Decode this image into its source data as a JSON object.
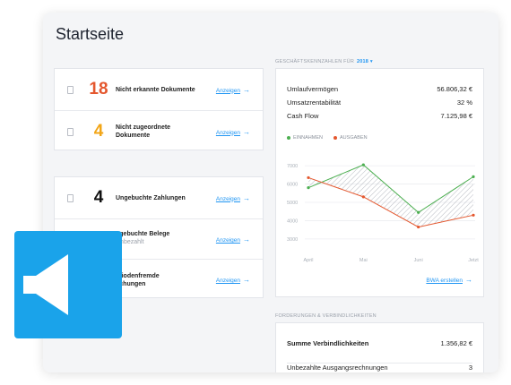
{
  "page": {
    "title": "Startseite"
  },
  "documents": [
    {
      "count": "18",
      "color": "#e4572e",
      "label": "Nicht erkannte Dokumente",
      "link": "Anzeigen"
    },
    {
      "count": "4",
      "color": "#f2a516",
      "label": "Nicht zugeordnete Dokumente",
      "link": "Anzeigen"
    }
  ],
  "bookings": [
    {
      "count": "4",
      "label": "Ungebuchte Zahlungen",
      "sub": "",
      "link": "Anzeigen"
    },
    {
      "count": "",
      "label": "ngebuchte Belege",
      "sub": "Unbezahlt",
      "link": "Anzeigen"
    },
    {
      "count": "",
      "label": "eriodenfremde\nuchungen",
      "sub": "",
      "link": "Anzeigen"
    }
  ],
  "kpi": {
    "section_label": "GESCHÄFTSKENNZAHLEN FÜR",
    "year": "2018",
    "rows": [
      {
        "label": "Umlaufvermögen",
        "value": "56.806,32 €"
      },
      {
        "label": "Umsatzrentabilität",
        "value": "32 %"
      },
      {
        "label": "Cash Flow",
        "value": "7.125,98 €"
      }
    ],
    "legend": {
      "income": "EINNAHMEN",
      "expenses": "AUSGABEN"
    },
    "bwa_link": "BWA erstellen"
  },
  "chart_data": {
    "type": "line",
    "x": [
      "April",
      "Mai",
      "Juni",
      "Jetzt"
    ],
    "yticks": [
      7000,
      6000,
      5000,
      4000,
      3000
    ],
    "ylim": [
      2700,
      7300
    ],
    "series": [
      {
        "name": "EINNAHMEN",
        "color": "#4caf50",
        "values": [
          5800,
          7050,
          4450,
          6400
        ]
      },
      {
        "name": "AUSGABEN",
        "color": "#e4572e",
        "values": [
          6350,
          5300,
          3650,
          4300
        ]
      }
    ]
  },
  "liabilities": {
    "section_label": "FORDERUNGEN & VERBINDLICHKEITEN",
    "rows": [
      {
        "label": "Summe Verbindlichkeiten",
        "value": "1.356,82 €",
        "bold": true
      },
      {
        "label": "Unbezahlte Ausgangsrechnungen",
        "value": "3",
        "bold": false
      }
    ]
  }
}
